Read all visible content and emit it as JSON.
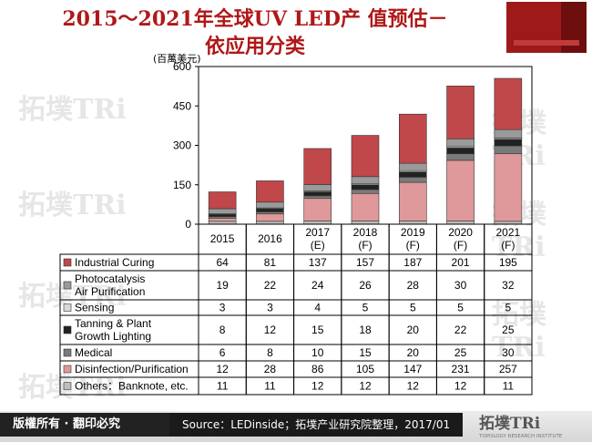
{
  "title_line1": "2015～2021年全球UV LED产 值预估－",
  "title_line2": "依应用分类",
  "unit_label": "(百萬美元)",
  "brand_logo_text": "拓墣TRi",
  "brand_sub_text": "TOPOLOGY RESEARCH INSTITUTE",
  "footer": {
    "rights": "版權所有 · 翻印必究",
    "source": "Source：LEDinside；拓墣产业研究院整理，2017/01"
  },
  "colors": {
    "title": "#b01818",
    "industrial_curing": "#c0474a",
    "photocatalysis": "#9a9a9a",
    "sensing": "#d8d8d8",
    "tanning": "#222222",
    "medical": "#7a7a7a",
    "disinfection": "#e0999a",
    "others": "#bdbdbd"
  },
  "chart_data": {
    "type": "bar",
    "stacked": true,
    "ylim": [
      0,
      600
    ],
    "yticks": [
      0,
      150,
      300,
      450,
      600
    ],
    "categories": [
      [
        "2015"
      ],
      [
        "2016"
      ],
      [
        "2017",
        "(E)"
      ],
      [
        "2018",
        "(F)"
      ],
      [
        "2019",
        "(F)"
      ],
      [
        "2020",
        "(F)"
      ],
      [
        "2021",
        "(F)"
      ]
    ],
    "stack_order": [
      "others",
      "disinfection",
      "medical",
      "tanning",
      "sensing",
      "photocatalysis",
      "industrial_curing"
    ],
    "series": [
      {
        "key": "industrial_curing",
        "name": "Industrial Curing",
        "values": [
          64,
          81,
          137,
          157,
          187,
          201,
          195
        ]
      },
      {
        "key": "photocatalysis",
        "name": "Photocatalysis\nAir Purification",
        "values": [
          19,
          22,
          24,
          26,
          28,
          30,
          32
        ]
      },
      {
        "key": "sensing",
        "name": "Sensing",
        "values": [
          3,
          3,
          4,
          5,
          5,
          5,
          5
        ]
      },
      {
        "key": "tanning",
        "name": "Tanning & Plant\nGrowth Lighting",
        "values": [
          8,
          12,
          15,
          18,
          20,
          22,
          25
        ]
      },
      {
        "key": "medical",
        "name": "Medical",
        "values": [
          6,
          8,
          10,
          15,
          20,
          25,
          30
        ]
      },
      {
        "key": "disinfection",
        "name": "Disinfection/Purification",
        "values": [
          12,
          28,
          86,
          105,
          147,
          231,
          257
        ]
      },
      {
        "key": "others",
        "name": "Others：Banknote, etc.",
        "values": [
          11,
          11,
          12,
          12,
          12,
          12,
          11
        ]
      }
    ]
  }
}
